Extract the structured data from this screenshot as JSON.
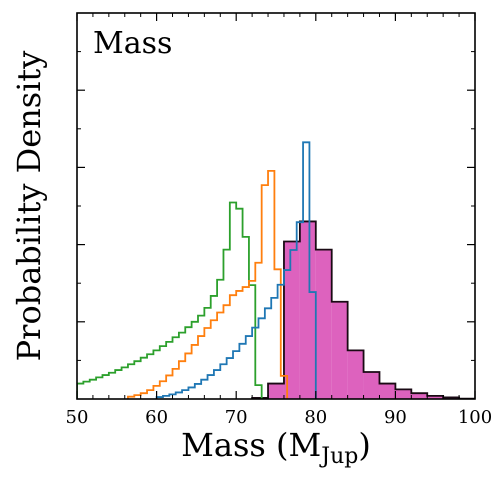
{
  "chart_data": {
    "type": "histogram",
    "title": "Mass",
    "xlabel": "Mass (M",
    "xlabel_sub": "Jup",
    "xlabel_close": ")",
    "ylabel": "Probability Density",
    "xlim": [
      50,
      100
    ],
    "ylim": [
      0,
      1.0
    ],
    "x_ticks": [
      50,
      60,
      70,
      80,
      90,
      100
    ],
    "x_tick_labels": [
      "50",
      "60",
      "70",
      "80",
      "90",
      "100"
    ],
    "bin_width_steps": 0.8,
    "bin_width_filled": 2.0,
    "series": [
      {
        "color": "#2ca02c",
        "style": "step",
        "bins": [
          [
            50.0,
            0.04
          ],
          [
            50.8,
            0.045
          ],
          [
            51.6,
            0.05
          ],
          [
            52.4,
            0.056
          ],
          [
            53.2,
            0.062
          ],
          [
            54.0,
            0.068
          ],
          [
            54.8,
            0.075
          ],
          [
            55.6,
            0.082
          ],
          [
            56.4,
            0.09
          ],
          [
            57.2,
            0.098
          ],
          [
            58.0,
            0.107
          ],
          [
            58.8,
            0.116
          ],
          [
            59.6,
            0.126
          ],
          [
            60.4,
            0.137
          ],
          [
            61.2,
            0.148
          ],
          [
            62.0,
            0.16
          ],
          [
            62.8,
            0.172
          ],
          [
            63.6,
            0.186
          ],
          [
            64.4,
            0.2
          ],
          [
            65.2,
            0.216
          ],
          [
            66.0,
            0.236
          ],
          [
            66.8,
            0.267
          ],
          [
            67.6,
            0.309
          ],
          [
            68.4,
            0.387
          ],
          [
            69.2,
            0.509
          ],
          [
            70.0,
            0.493
          ],
          [
            70.8,
            0.42
          ],
          [
            71.6,
            0.295
          ],
          [
            72.4,
            0.036
          ]
        ]
      },
      {
        "color": "#ff7f0e",
        "style": "step",
        "bins": [
          [
            56.4,
            0.006
          ],
          [
            57.2,
            0.01
          ],
          [
            58.0,
            0.015
          ],
          [
            58.8,
            0.023
          ],
          [
            59.6,
            0.034
          ],
          [
            60.4,
            0.046
          ],
          [
            61.2,
            0.061
          ],
          [
            62.0,
            0.078
          ],
          [
            62.8,
            0.098
          ],
          [
            63.6,
            0.118
          ],
          [
            64.4,
            0.14
          ],
          [
            65.2,
            0.163
          ],
          [
            66.0,
            0.184
          ],
          [
            66.8,
            0.204
          ],
          [
            67.6,
            0.224
          ],
          [
            68.4,
            0.243
          ],
          [
            69.2,
            0.269
          ],
          [
            70.0,
            0.28
          ],
          [
            70.8,
            0.29
          ],
          [
            71.6,
            0.306
          ],
          [
            72.4,
            0.353
          ],
          [
            73.2,
            0.554
          ],
          [
            74.0,
            0.591
          ],
          [
            74.8,
            0.336
          ],
          [
            75.6,
            0.06
          ]
        ]
      },
      {
        "color": "#1f77b4",
        "style": "step",
        "bins": [
          [
            60.0,
            0.005
          ],
          [
            60.8,
            0.008
          ],
          [
            61.6,
            0.012
          ],
          [
            62.4,
            0.017
          ],
          [
            63.2,
            0.023
          ],
          [
            64.0,
            0.03
          ],
          [
            64.8,
            0.039
          ],
          [
            65.6,
            0.05
          ],
          [
            66.4,
            0.062
          ],
          [
            67.2,
            0.075
          ],
          [
            68.0,
            0.09
          ],
          [
            68.8,
            0.106
          ],
          [
            69.6,
            0.124
          ],
          [
            70.4,
            0.143
          ],
          [
            71.2,
            0.163
          ],
          [
            72.0,
            0.185
          ],
          [
            72.8,
            0.209
          ],
          [
            73.6,
            0.235
          ],
          [
            74.4,
            0.262
          ],
          [
            75.2,
            0.296
          ],
          [
            76.0,
            0.334
          ],
          [
            76.8,
            0.386
          ],
          [
            77.6,
            0.458
          ],
          [
            78.4,
            0.665
          ],
          [
            79.2,
            0.277
          ]
        ]
      },
      {
        "color": "#d63fb0",
        "edge": "#1a0a14",
        "style": "filled",
        "bins": [
          [
            72.0,
            0.003
          ],
          [
            74.0,
            0.04
          ],
          [
            76.0,
            0.408
          ],
          [
            78.0,
            0.46
          ],
          [
            80.0,
            0.387
          ],
          [
            82.0,
            0.252
          ],
          [
            84.0,
            0.126
          ],
          [
            86.0,
            0.07
          ],
          [
            88.0,
            0.04
          ],
          [
            90.0,
            0.025
          ],
          [
            92.0,
            0.015
          ],
          [
            94.0,
            0.008
          ],
          [
            96.0,
            0.004
          ],
          [
            98.0,
            0.001
          ]
        ]
      }
    ]
  }
}
